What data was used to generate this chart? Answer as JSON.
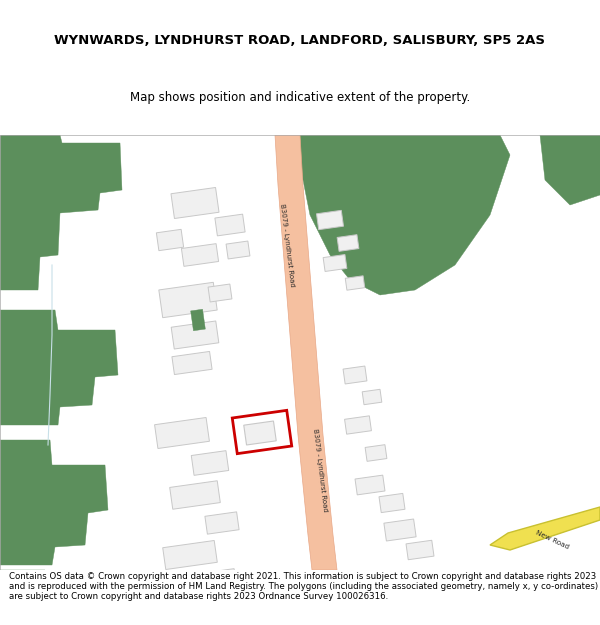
{
  "title_line1": "WYNWARDS, LYNDHURST ROAD, LANDFORD, SALISBURY, SP5 2AS",
  "title_line2": "Map shows position and indicative extent of the property.",
  "footer_text": "Contains OS data © Crown copyright and database right 2021. This information is subject to Crown copyright and database rights 2023 and is reproduced with the permission of HM Land Registry. The polygons (including the associated geometry, namely x, y co-ordinates) are subject to Crown copyright and database rights 2023 Ordnance Survey 100026316.",
  "bg_color": "#ffffff",
  "map_bg": "#f2f0ee",
  "green": "#5c8f5c",
  "road_fill": "#f5c0a0",
  "road_edge": "#e8a888",
  "bld_fill": "#f0f0f0",
  "bld_edge": "#c8c8c8",
  "plot_edge": "#cc0000",
  "plot_fill": "#ffffff",
  "yellow_fill": "#f0e050",
  "yellow_edge": "#c8c030",
  "light_blue": "#c8e0e8",
  "road_label": "B3079 - Lyndhurst Road",
  "new_road_label": "New Road",
  "title_fs": 9.5,
  "sub_fs": 8.5,
  "foot_fs": 6.2
}
